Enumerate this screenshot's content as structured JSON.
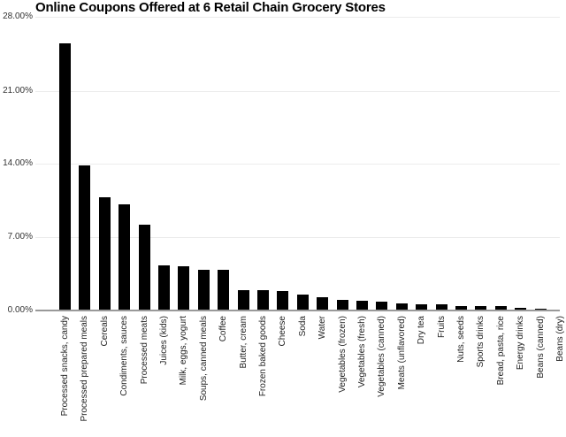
{
  "chart_data": {
    "type": "bar",
    "title": "Online Coupons Offered at 6 Retail Chain Grocery Stores",
    "xlabel": "",
    "ylabel": "",
    "ylim": [
      0,
      28
    ],
    "y_ticks": [
      "0.00%",
      "7.00%",
      "14.00%",
      "21.00%",
      "28.00%"
    ],
    "y_tick_values": [
      0,
      7,
      14,
      21,
      28
    ],
    "grid": true,
    "legend": null,
    "bar_color": "#000000",
    "categories": [
      "Processed snacks, candy",
      "Processed prepared meals",
      "Cereals",
      "Condiments, sauces",
      "Processed meats",
      "Juices (kids)",
      "Milk, eggs, yogurt",
      "Soups, canned meals",
      "Coffee",
      "Butter, cream",
      "Frozen baked goods",
      "Cheese",
      "Soda",
      "Water",
      "Vegetables (frozen)",
      "Vegetables (fresh)",
      "Vegetables (canned)",
      "Meats (unflavored)",
      "Dry tea",
      "Fruits",
      "Nuts, seeds",
      "Sports drinks",
      "Bread, pasta, rice",
      "Energy drinks",
      "Beans (canned)",
      "Beans (dry)"
    ],
    "values": [
      25.46,
      13.83,
      10.8,
      10.12,
      8.18,
      4.3,
      4.22,
      3.88,
      3.88,
      1.94,
      1.94,
      1.85,
      1.52,
      1.26,
      1.01,
      0.93,
      0.84,
      0.67,
      0.59,
      0.59,
      0.42,
      0.42,
      0.42,
      0.25,
      0.17,
      0.0
    ]
  }
}
